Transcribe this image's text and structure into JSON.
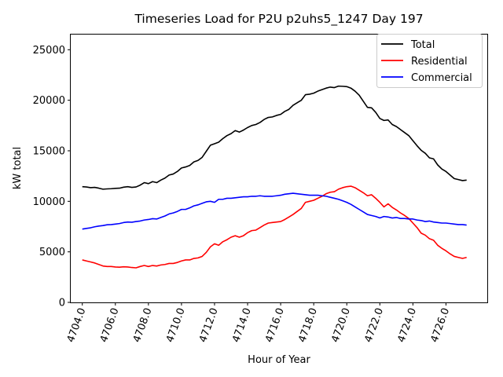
{
  "chart_data": {
    "type": "line",
    "title": "Timeseries Load for P2U p2uhs5_1247  Day 197",
    "xlabel": "Hour of Year",
    "ylabel": "kW total",
    "xlim": [
      4703.3,
      4728.5
    ],
    "ylim": [
      0,
      26500
    ],
    "xticks": [
      4704,
      4706,
      4708,
      4710,
      4712,
      4714,
      4716,
      4718,
      4720,
      4722,
      4724,
      4726
    ],
    "xtick_labels": [
      "4704.0",
      "4706.0",
      "4708.0",
      "4710.0",
      "4712.0",
      "4714.0",
      "4716.0",
      "4718.0",
      "4720.0",
      "4722.0",
      "4724.0",
      "4726.0"
    ],
    "yticks": [
      0,
      5000,
      10000,
      15000,
      20000,
      25000
    ],
    "ytick_labels": [
      "0",
      "5000",
      "10000",
      "15000",
      "20000",
      "25000"
    ],
    "legend_position": "top-right",
    "x_start": 4704.0,
    "x_step": 0.25,
    "series": [
      {
        "name": "Total",
        "color": "#000000",
        "values": [
          11450,
          11420,
          11350,
          11380,
          11300,
          11200,
          11230,
          11250,
          11280,
          11300,
          11400,
          11450,
          11380,
          11420,
          11600,
          11850,
          11750,
          11950,
          11850,
          12100,
          12300,
          12600,
          12700,
          12950,
          13300,
          13400,
          13550,
          13900,
          14050,
          14350,
          14950,
          15550,
          15700,
          15850,
          16200,
          16500,
          16700,
          17000,
          16850,
          17050,
          17300,
          17500,
          17600,
          17800,
          18100,
          18300,
          18350,
          18500,
          18600,
          18900,
          19100,
          19500,
          19750,
          20000,
          20550,
          20600,
          20700,
          20900,
          21050,
          21200,
          21300,
          21250,
          21400,
          21380,
          21350,
          21200,
          20900,
          20500,
          19900,
          19300,
          19250,
          18800,
          18200,
          18000,
          18050,
          17600,
          17400,
          17100,
          16800,
          16500,
          16000,
          15500,
          15050,
          14750,
          14300,
          14200,
          13600,
          13200,
          12950,
          12600,
          12250,
          12150,
          12050,
          12100
        ]
      },
      {
        "name": "Residential",
        "color": "#ff0000",
        "values": [
          4200,
          4100,
          4000,
          3900,
          3750,
          3600,
          3550,
          3550,
          3500,
          3480,
          3520,
          3500,
          3450,
          3420,
          3550,
          3650,
          3550,
          3650,
          3600,
          3700,
          3750,
          3850,
          3850,
          3950,
          4100,
          4200,
          4200,
          4350,
          4400,
          4550,
          4950,
          5500,
          5800,
          5650,
          6000,
          6200,
          6450,
          6600,
          6450,
          6600,
          6900,
          7100,
          7150,
          7400,
          7650,
          7850,
          7900,
          7950,
          8000,
          8200,
          8450,
          8700,
          9000,
          9300,
          9900,
          10000,
          10100,
          10300,
          10500,
          10750,
          10900,
          10950,
          11200,
          11350,
          11450,
          11500,
          11350,
          11100,
          10850,
          10550,
          10650,
          10300,
          9900,
          9450,
          9750,
          9400,
          9150,
          8850,
          8600,
          8300,
          7850,
          7400,
          6850,
          6650,
          6300,
          6150,
          5650,
          5350,
          5100,
          4800,
          4550,
          4450,
          4350,
          4450
        ]
      },
      {
        "name": "Commercial",
        "color": "#0000ff",
        "values": [
          7250,
          7320,
          7380,
          7480,
          7550,
          7600,
          7680,
          7700,
          7750,
          7800,
          7900,
          7950,
          7930,
          8000,
          8050,
          8150,
          8200,
          8280,
          8250,
          8400,
          8550,
          8750,
          8850,
          9000,
          9200,
          9200,
          9350,
          9550,
          9650,
          9800,
          9950,
          10000,
          9900,
          10200,
          10200,
          10300,
          10300,
          10350,
          10400,
          10450,
          10450,
          10500,
          10500,
          10550,
          10500,
          10500,
          10500,
          10550,
          10600,
          10700,
          10750,
          10800,
          10750,
          10700,
          10650,
          10600,
          10600,
          10600,
          10550,
          10500,
          10400,
          10300,
          10200,
          10050,
          9900,
          9700,
          9450,
          9200,
          8950,
          8700,
          8600,
          8500,
          8350,
          8500,
          8450,
          8350,
          8400,
          8300,
          8300,
          8250,
          8250,
          8150,
          8100,
          8000,
          8050,
          7950,
          7900,
          7850,
          7850,
          7800,
          7750,
          7700,
          7700,
          7650
        ]
      }
    ]
  }
}
